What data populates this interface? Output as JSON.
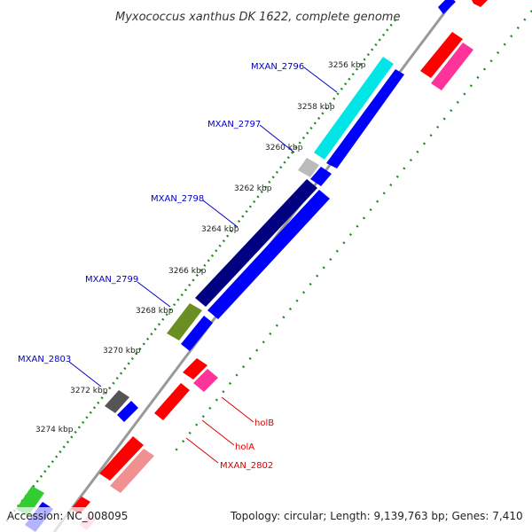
{
  "title": "Myxococcus xanthus DK 1622, complete genome",
  "footer": {
    "accession": "Accession: NC_008095",
    "summary": "Topology: circular; Length: 9,139,763 bp; Genes: 7,410"
  },
  "ticks": [
    "3256 kbp",
    "3258 kbp",
    "3260 kbp",
    "3262 kbp",
    "3264 kbp",
    "3266 kbp",
    "3268 kbp",
    "3270 kbp",
    "3272 kbp",
    "3274 kbp"
  ],
  "gene_labels": {
    "mxan_2796": "MXAN_2796",
    "mxan_2797": "MXAN_2797",
    "mxan_2798": "MXAN_2798",
    "mxan_2799": "MXAN_2799",
    "mxan_2803": "MXAN_2803",
    "holB": "holB",
    "holA": "holA",
    "mxan_2802": "MXAN_2802"
  },
  "colors": {
    "backbone": "#888888",
    "tick_dots": "#228B22",
    "forward_cds": "#0000ff",
    "reverse_cds": "#ff0000",
    "gene_label_forward": "#0000cc",
    "gene_label_reverse": "#dd0000"
  }
}
